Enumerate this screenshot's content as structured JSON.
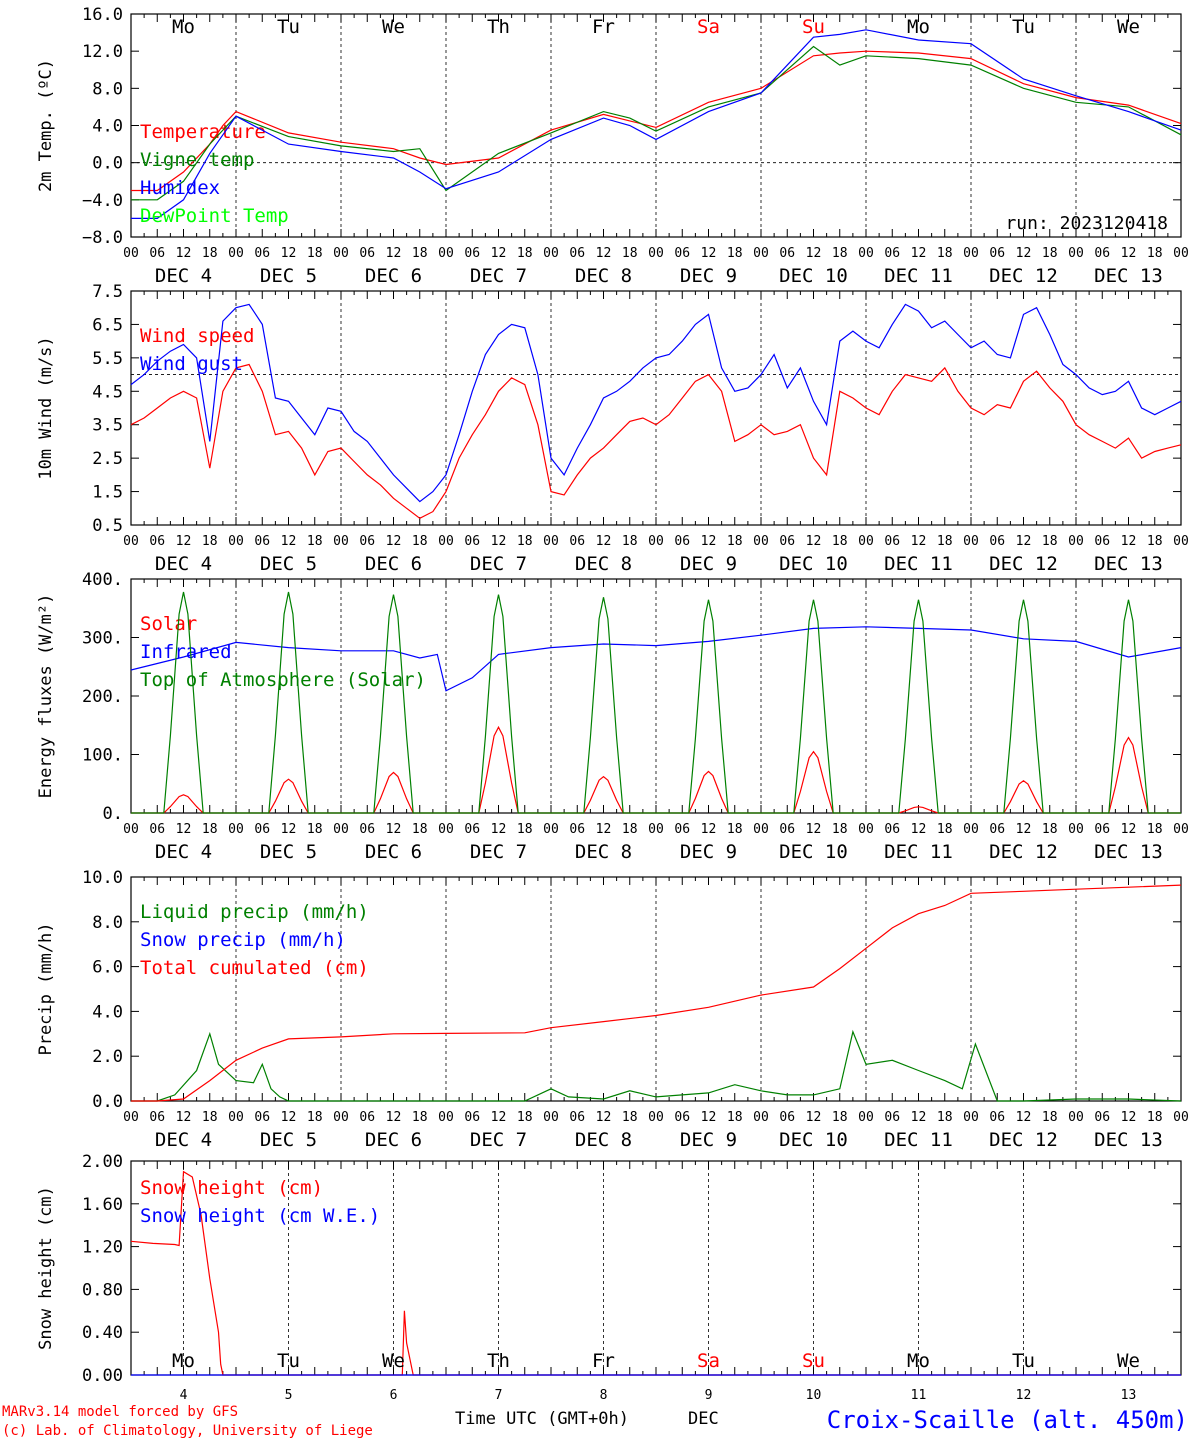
{
  "footer": {
    "model": "MARv3.14 model forced by GFS",
    "copyright": "(c) Lab. of Climatology, University of Liege",
    "xaxis": "Time UTC (GMT+0h)",
    "month": "DEC",
    "station": "Croix-Scaille (alt. 450m)"
  },
  "colors": {
    "red": "#ff0000",
    "green": "#008000",
    "blue": "#0000ff",
    "lime": "#00ff00",
    "purple": "#800080"
  },
  "hour_labels": [
    "00",
    "06",
    "12",
    "18"
  ],
  "date_labels": [
    "DEC  4",
    "DEC  5",
    "DEC  6",
    "DEC  7",
    "DEC  8",
    "DEC  9",
    "DEC 10",
    "DEC 11",
    "DEC 12",
    "DEC 13"
  ],
  "day_labels": [
    {
      "t": "Mo",
      "c": "black"
    },
    {
      "t": "Tu",
      "c": "black"
    },
    {
      "t": "We",
      "c": "black"
    },
    {
      "t": "Th",
      "c": "black"
    },
    {
      "t": "Fr",
      "c": "black"
    },
    {
      "t": "Sa",
      "c": "red"
    },
    {
      "t": "Su",
      "c": "red"
    },
    {
      "t": "Mo",
      "c": "black"
    },
    {
      "t": "Tu",
      "c": "black"
    },
    {
      "t": "We",
      "c": "black"
    }
  ],
  "day_numbers": [
    "4",
    "5",
    "6",
    "7",
    "8",
    "9",
    "10",
    "11",
    "12",
    "13"
  ],
  "chart_data": [
    {
      "type": "line",
      "ylabel": "2m Temp. (ºC)",
      "ylim": [
        -8,
        16
      ],
      "yticks": [
        "16.0",
        "12.0",
        "8.0",
        "4.0",
        "0.0",
        "−4.0",
        "−8.0"
      ],
      "x_unit": "hours since DEC 4 00 UTC",
      "xlim": [
        0,
        240
      ],
      "annotation": "run: 2023120418",
      "series": [
        {
          "name": "Temperature",
          "color": "#ff0000",
          "x": [
            0,
            6,
            12,
            18,
            21,
            24,
            36,
            48,
            60,
            66,
            72,
            84,
            96,
            108,
            114,
            120,
            132,
            144,
            156,
            162,
            168,
            180,
            192,
            204,
            216,
            228,
            240
          ],
          "y": [
            -3,
            -3,
            -1,
            2,
            4,
            5.5,
            3.2,
            2.2,
            1.5,
            0.5,
            -0.2,
            0.5,
            3.5,
            5.2,
            4.5,
            3.8,
            6.5,
            8,
            11.5,
            11.8,
            12,
            11.8,
            11.2,
            8.5,
            7,
            6.2,
            4.2
          ]
        },
        {
          "name": "Vigne temp",
          "color": "#008000",
          "x": [
            0,
            6,
            12,
            18,
            21,
            24,
            36,
            48,
            60,
            66,
            72,
            84,
            96,
            108,
            114,
            120,
            132,
            144,
            156,
            162,
            168,
            180,
            192,
            204,
            216,
            228,
            240
          ],
          "y": [
            -4,
            -4,
            -2,
            2,
            3.5,
            5,
            2.8,
            1.8,
            1.2,
            1.5,
            -3,
            1,
            3.2,
            5.5,
            4.8,
            3.4,
            6,
            7.5,
            12.5,
            10.5,
            11.5,
            11.2,
            10.5,
            8,
            6.5,
            6,
            3
          ]
        },
        {
          "name": "Humidex",
          "color": "#0000ff",
          "x": [
            0,
            6,
            12,
            18,
            21,
            24,
            36,
            48,
            60,
            66,
            72,
            84,
            96,
            108,
            114,
            120,
            132,
            144,
            156,
            162,
            168,
            180,
            192,
            204,
            216,
            228,
            240
          ],
          "y": [
            -6,
            -6,
            -4,
            1,
            3,
            5,
            2,
            1.2,
            0.5,
            -1,
            -2.8,
            -1,
            2.5,
            4.8,
            4,
            2.5,
            5.5,
            7.5,
            13.5,
            13.8,
            14.3,
            13.2,
            12.8,
            9,
            7.2,
            5.5,
            3.5
          ]
        },
        {
          "name": "DewPoint Temp",
          "color": "#00ff00",
          "x": [],
          "y": []
        }
      ]
    },
    {
      "type": "line",
      "ylabel": "10m Wind (m/s)",
      "ylim": [
        0.5,
        7.5
      ],
      "yticks": [
        "7.5",
        "6.5",
        "5.5",
        "4.5",
        "3.5",
        "2.5",
        "1.5",
        "0.5"
      ],
      "x_unit": "hours since DEC 4 00 UTC",
      "xlim": [
        0,
        240
      ],
      "series": [
        {
          "name": "Wind speed",
          "color": "#ff0000",
          "x": [
            0,
            3,
            6,
            9,
            12,
            15,
            18,
            21,
            24,
            27,
            30,
            33,
            36,
            39,
            42,
            45,
            48,
            51,
            54,
            57,
            60,
            63,
            66,
            69,
            72,
            75,
            78,
            81,
            84,
            87,
            90,
            93,
            96,
            99,
            102,
            105,
            108,
            111,
            114,
            117,
            120,
            123,
            126,
            129,
            132,
            135,
            138,
            141,
            144,
            147,
            150,
            153,
            156,
            159,
            162,
            165,
            168,
            171,
            174,
            177,
            180,
            183,
            186,
            189,
            192,
            195,
            198,
            201,
            204,
            207,
            210,
            213,
            216,
            219,
            222,
            225,
            228,
            231,
            234,
            237,
            240
          ],
          "y": [
            3.5,
            3.7,
            4,
            4.3,
            4.5,
            4.3,
            2.2,
            4.5,
            5.2,
            5.3,
            4.5,
            3.2,
            3.3,
            2.8,
            2,
            2.7,
            2.8,
            2.4,
            2,
            1.7,
            1.3,
            1,
            0.7,
            0.9,
            1.5,
            2.5,
            3.2,
            3.8,
            4.5,
            4.9,
            4.7,
            3.5,
            1.5,
            1.4,
            2,
            2.5,
            2.8,
            3.2,
            3.6,
            3.7,
            3.5,
            3.8,
            4.3,
            4.8,
            5,
            4.5,
            3,
            3.2,
            3.5,
            3.2,
            3.3,
            3.5,
            2.5,
            2,
            4.5,
            4.3,
            4,
            3.8,
            4.5,
            5,
            4.9,
            4.8,
            5.2,
            4.5,
            4,
            3.8,
            4.1,
            4,
            4.8,
            5.1,
            4.6,
            4.2,
            3.5,
            3.2,
            3,
            2.8,
            3.1,
            2.5,
            2.7,
            2.8,
            2.9
          ]
        },
        {
          "name": "Wind gust",
          "color": "#0000ff",
          "x": [
            0,
            3,
            6,
            9,
            12,
            15,
            18,
            21,
            24,
            27,
            30,
            33,
            36,
            39,
            42,
            45,
            48,
            51,
            54,
            57,
            60,
            63,
            66,
            69,
            72,
            75,
            78,
            81,
            84,
            87,
            90,
            93,
            96,
            99,
            102,
            105,
            108,
            111,
            114,
            117,
            120,
            123,
            126,
            129,
            132,
            135,
            138,
            141,
            144,
            147,
            150,
            153,
            156,
            159,
            162,
            165,
            168,
            171,
            174,
            177,
            180,
            183,
            186,
            189,
            192,
            195,
            198,
            201,
            204,
            207,
            210,
            213,
            216,
            219,
            222,
            225,
            228,
            231,
            234,
            237,
            240
          ],
          "y": [
            4.7,
            5,
            5.4,
            5.7,
            5.9,
            5.5,
            3,
            6.6,
            7,
            7.1,
            6.5,
            4.3,
            4.2,
            3.7,
            3.2,
            4,
            3.9,
            3.3,
            3,
            2.5,
            2,
            1.6,
            1.2,
            1.5,
            2,
            3.2,
            4.5,
            5.6,
            6.2,
            6.5,
            6.4,
            5,
            2.5,
            2,
            2.8,
            3.5,
            4.3,
            4.5,
            4.8,
            5.2,
            5.5,
            5.6,
            6,
            6.5,
            6.8,
            5.2,
            4.5,
            4.6,
            5,
            5.6,
            4.6,
            5.2,
            4.2,
            3.5,
            6,
            6.3,
            6,
            5.8,
            6.5,
            7.1,
            6.9,
            6.4,
            6.6,
            6.2,
            5.8,
            6,
            5.6,
            5.5,
            6.8,
            7,
            6.2,
            5.3,
            5,
            4.6,
            4.4,
            4.5,
            4.8,
            4,
            3.8,
            4,
            4.2
          ]
        }
      ]
    },
    {
      "type": "line",
      "ylabel": "Energy fluxes (W/m²)",
      "ylim": [
        0,
        450
      ],
      "yticks": [
        "400.",
        "300.",
        "200.",
        "100.",
        "0."
      ],
      "x_unit": "hours since DEC 4 00 UTC",
      "xlim": [
        0,
        240
      ],
      "series": [
        {
          "name": "Solar",
          "color": "#ff0000",
          "peaks": [
            35,
            65,
            78,
            165,
            70,
            80,
            118,
            12,
            62,
            145
          ]
        },
        {
          "name": "Infrared",
          "color": "#0000ff",
          "x": [
            0,
            12,
            24,
            36,
            48,
            60,
            66,
            70,
            72,
            78,
            84,
            96,
            108,
            120,
            132,
            144,
            156,
            168,
            180,
            192,
            204,
            216,
            228,
            240
          ],
          "y": [
            275,
            300,
            328,
            318,
            312,
            312,
            298,
            305,
            235,
            260,
            305,
            318,
            325,
            322,
            330,
            342,
            355,
            358,
            355,
            352,
            335,
            330,
            300,
            318
          ]
        },
        {
          "name": "Top of Atmosphere (Solar)",
          "color": "#008000",
          "peaks": [
            425,
            425,
            420,
            420,
            415,
            410,
            410,
            410,
            410,
            410
          ]
        }
      ]
    },
    {
      "type": "line",
      "ylabel": "Precip (mm/h)",
      "ylim": [
        0,
        11
      ],
      "yticks": [
        "10.0",
        "8.0",
        "6.0",
        "4.0",
        "2.0",
        "0.0"
      ],
      "x_unit": "hours since DEC 4 00 UTC",
      "xlim": [
        0,
        240
      ],
      "series": [
        {
          "name": "Liquid precip (mm/h)",
          "color": "#008000",
          "x": [
            0,
            6,
            10,
            15,
            18,
            20,
            24,
            28,
            30,
            32,
            34,
            36,
            40,
            48,
            60,
            72,
            90,
            96,
            100,
            108,
            114,
            120,
            132,
            138,
            144,
            150,
            156,
            162,
            165,
            168,
            174,
            180,
            186,
            190,
            193,
            198,
            204,
            216,
            228,
            240
          ],
          "y": [
            0,
            0,
            0.3,
            1.5,
            3.3,
            1.8,
            1,
            0.9,
            1.8,
            0.6,
            0.2,
            0,
            0,
            0,
            0,
            0,
            0,
            0.6,
            0.2,
            0.1,
            0.5,
            0.2,
            0.4,
            0.8,
            0.5,
            0.3,
            0.3,
            0.6,
            3.4,
            1.8,
            2,
            1.5,
            1,
            0.6,
            2.8,
            0,
            0,
            0.1,
            0.1,
            0
          ]
        },
        {
          "name": "Snow precip (mm/h)",
          "color": "#0000ff",
          "x": [],
          "y": []
        },
        {
          "name": "Total cumulated (cm)",
          "color": "#ff0000",
          "x": [
            0,
            6,
            12,
            18,
            24,
            30,
            36,
            48,
            60,
            72,
            90,
            96,
            108,
            120,
            132,
            144,
            156,
            162,
            168,
            174,
            180,
            186,
            192,
            204,
            216,
            228,
            240
          ],
          "y": [
            0,
            0,
            0.1,
            1,
            2,
            2.6,
            3.05,
            3.15,
            3.3,
            3.32,
            3.35,
            3.6,
            3.9,
            4.2,
            4.6,
            5.2,
            5.6,
            6.5,
            7.5,
            8.5,
            9.2,
            9.6,
            10.2,
            10.3,
            10.4,
            10.5,
            10.6
          ]
        }
      ]
    },
    {
      "type": "line",
      "ylabel": "Snow height (cm)",
      "ylim": [
        0,
        2
      ],
      "yticks": [
        "2.00",
        "1.60",
        "1.20",
        "0.80",
        "0.40",
        "0.00"
      ],
      "x_unit": "hours since DEC 4 00 UTC",
      "xlim": [
        0,
        240
      ],
      "series": [
        {
          "name": "Snow height (cm)",
          "color": "#ff0000",
          "x": [
            0,
            5,
            10,
            11,
            12,
            14,
            16,
            18,
            20,
            20.5,
            21,
            58,
            62,
            62.5,
            63,
            64.5,
            65,
            240
          ],
          "y": [
            1.25,
            1.23,
            1.22,
            1.21,
            1.9,
            1.85,
            1.5,
            0.9,
            0.4,
            0.1,
            0,
            0,
            0,
            0.6,
            0.3,
            0,
            0,
            0
          ]
        },
        {
          "name": "Snow height (cm W.E.)",
          "color": "#0000ff",
          "x": [
            0,
            240
          ],
          "y": [
            0,
            0
          ]
        }
      ]
    }
  ]
}
